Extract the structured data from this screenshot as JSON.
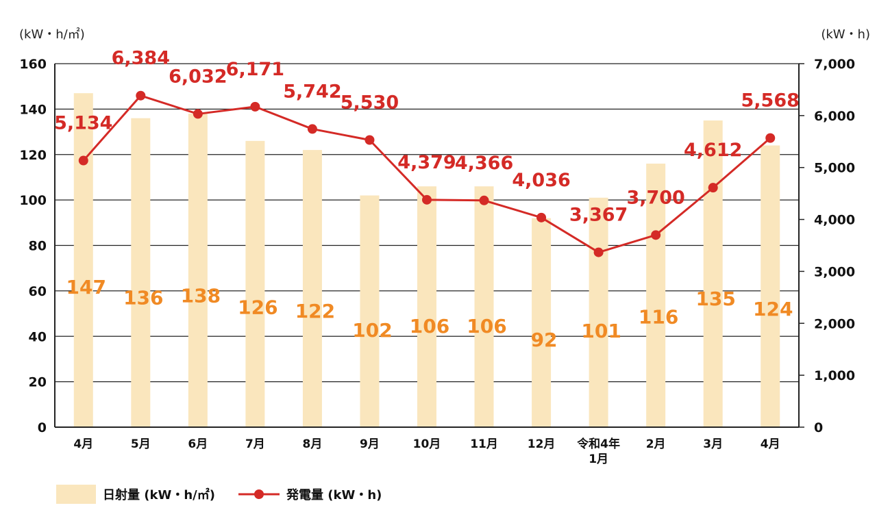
{
  "chart_data": {
    "type": "bar",
    "categories": [
      [
        "4月"
      ],
      [
        "5月"
      ],
      [
        "6月"
      ],
      [
        "7月"
      ],
      [
        "8月"
      ],
      [
        "9月"
      ],
      [
        "10月"
      ],
      [
        "11月"
      ],
      [
        "12月"
      ],
      [
        "令和4年",
        "1月"
      ],
      [
        "2月"
      ],
      [
        "3月"
      ],
      [
        "4月"
      ]
    ],
    "series": [
      {
        "name": "日射量 (kW・h/㎡)",
        "type": "bar",
        "axis": "left",
        "color": "#fae6bd",
        "label_color": "#f08a24",
        "values": [
          147,
          136,
          138,
          126,
          122,
          102,
          106,
          106,
          92,
          101,
          116,
          135,
          124
        ]
      },
      {
        "name": "発電量 (kW・h)",
        "type": "line",
        "axis": "right",
        "color": "#d42a26",
        "values": [
          5134,
          6384,
          6032,
          6171,
          5742,
          5530,
          4379,
          4366,
          4036,
          3367,
          3700,
          4612,
          5568
        ],
        "labels": [
          "5,134",
          "6,384",
          "6,032",
          "6,171",
          "5,742",
          "5,530",
          "4,379",
          "4,366",
          "4,036",
          "3,367",
          "3,700",
          "4,612",
          "5,568"
        ]
      }
    ],
    "left_axis": {
      "unit": "(kW・h/㎡)",
      "ylim": [
        0,
        160
      ],
      "ticks": [
        0,
        20,
        40,
        60,
        80,
        100,
        120,
        140,
        160
      ],
      "tick_labels": [
        "0",
        "20",
        "40",
        "60",
        "80",
        "100",
        "120",
        "140",
        "160"
      ]
    },
    "right_axis": {
      "unit": "(kW・h)",
      "ylim": [
        0,
        7000
      ],
      "ticks": [
        0,
        1000,
        2000,
        3000,
        4000,
        5000,
        6000,
        7000
      ],
      "tick_labels": [
        "0",
        "1,000",
        "2,000",
        "3,000",
        "4,000",
        "5,000",
        "6,000",
        "7,000"
      ]
    },
    "grid": true,
    "legend_position": "bottom-left"
  }
}
